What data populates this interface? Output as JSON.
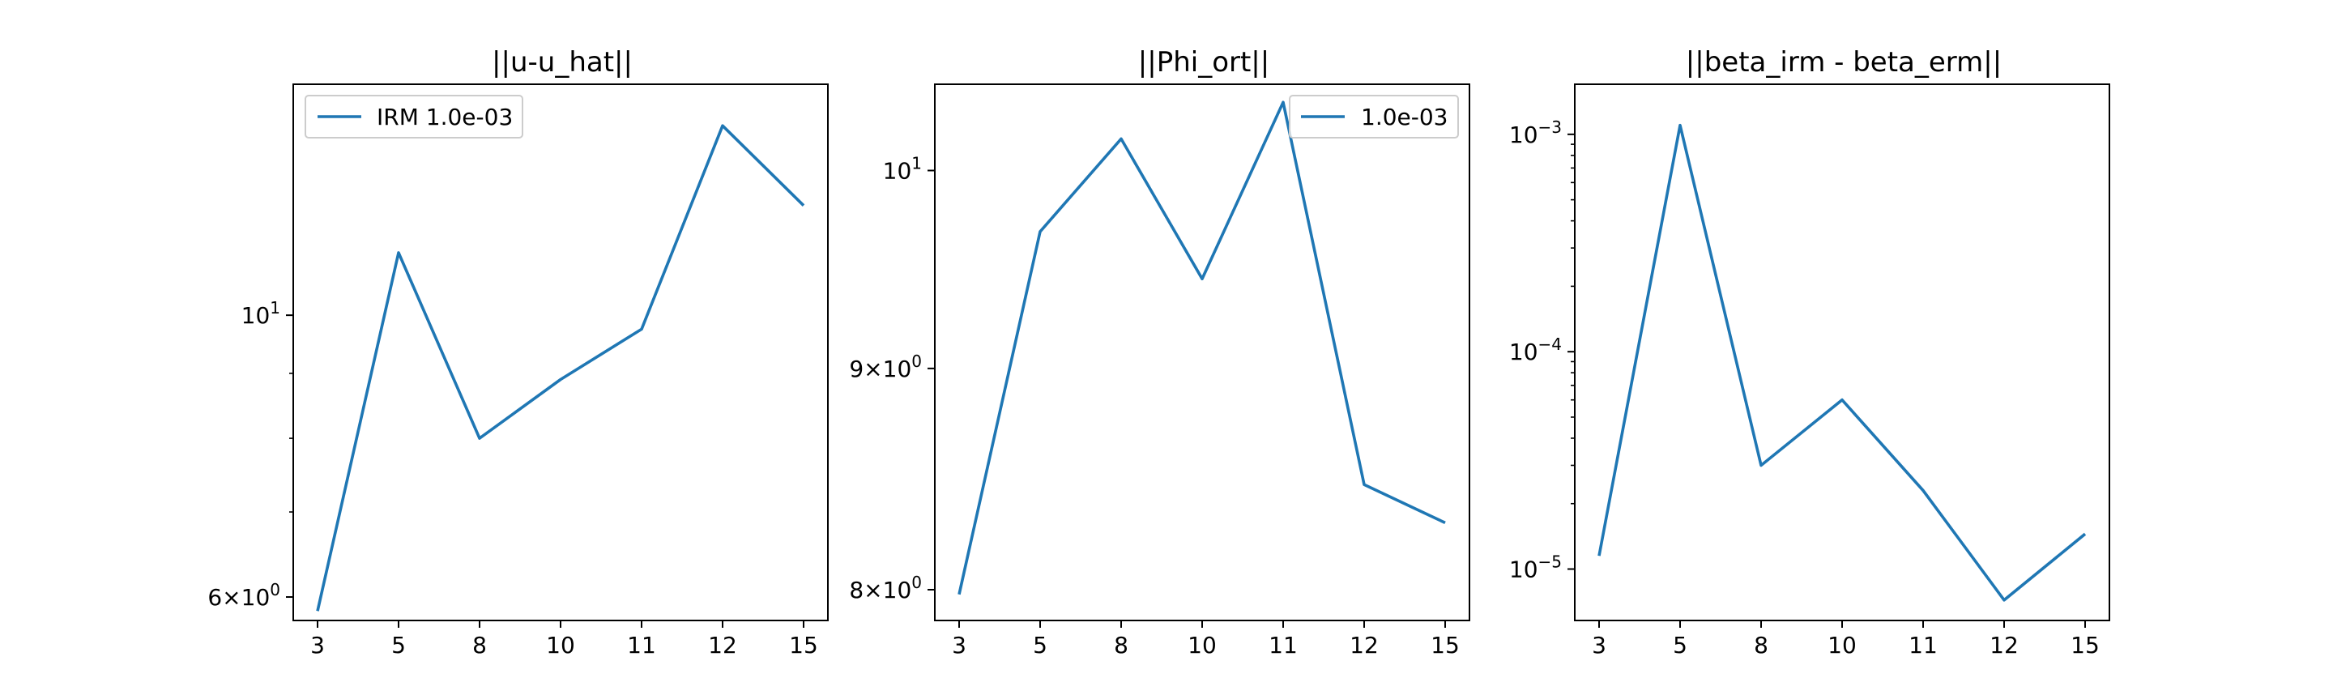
{
  "chart_data": [
    {
      "type": "line",
      "title": "||u-u_hat||",
      "yscale": "log",
      "ylim": [
        5.75,
        15.2
      ],
      "categories": [
        "3",
        "5",
        "8",
        "10",
        "11",
        "12",
        "15"
      ],
      "series": [
        {
          "name": "IRM 1.0e-03",
          "values": [
            5.85,
            11.2,
            8.0,
            8.9,
            9.75,
            14.1,
            12.2
          ]
        }
      ],
      "yticks_major": [
        {
          "value": 6,
          "mant": "6",
          "exp": "0"
        },
        {
          "value": 10,
          "mant": "10",
          "exp": "1"
        }
      ],
      "yticks_minor": [
        7,
        8,
        9
      ],
      "legend": {
        "loc": "upper left"
      },
      "grid": false
    },
    {
      "type": "line",
      "title": "||Phi_ort||",
      "yscale": "log",
      "ylim": [
        7.87,
        10.47
      ],
      "categories": [
        "3",
        "5",
        "8",
        "10",
        "11",
        "12",
        "15"
      ],
      "series": [
        {
          "name": "1.0e-03",
          "values": [
            7.98,
            9.68,
            10.17,
            9.44,
            10.37,
            8.46,
            8.29
          ]
        }
      ],
      "yticks_major": [
        {
          "value": 8,
          "mant": "8",
          "exp": "0"
        },
        {
          "value": 9,
          "mant": "9",
          "exp": "0"
        },
        {
          "value": 10,
          "mant": "10",
          "exp": "1"
        }
      ],
      "yticks_minor": [],
      "legend": {
        "loc": "upper right"
      },
      "grid": false
    },
    {
      "type": "line",
      "title": "||beta_irm - beta_erm||",
      "yscale": "log",
      "ylim": [
        5.8e-06,
        0.0017
      ],
      "categories": [
        "3",
        "5",
        "8",
        "10",
        "11",
        "12",
        "15"
      ],
      "series": [
        {
          "name": "",
          "values": [
            1.15e-05,
            0.0011,
            3e-05,
            6e-05,
            2.3e-05,
            7.2e-06,
            1.45e-05
          ]
        }
      ],
      "yticks_major": [
        {
          "value": 1e-05,
          "mant": "10",
          "exp": "−5"
        },
        {
          "value": 0.0001,
          "mant": "10",
          "exp": "−4"
        },
        {
          "value": 0.001,
          "mant": "10",
          "exp": "−3"
        }
      ],
      "yticks_minor": [
        2e-05,
        3e-05,
        4e-05,
        5e-05,
        6e-05,
        7e-05,
        8e-05,
        9e-05,
        0.0002,
        0.0003,
        0.0004,
        0.0005,
        0.0006,
        0.0007,
        0.0008,
        0.0009
      ],
      "legend": null,
      "grid": false
    }
  ],
  "colors": {
    "series": "#1f77b4",
    "axes": "#000000",
    "legend_border": "#cccccc"
  }
}
